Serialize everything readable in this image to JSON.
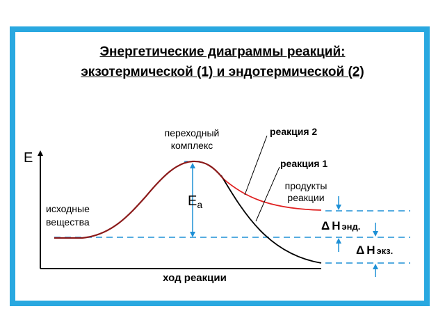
{
  "title": {
    "line1": "Энергетические диаграммы реакций:",
    "line2": "экзотермической (1) и эндотермической (2)"
  },
  "axes": {
    "y_label": "E",
    "x_label": "ход реакции"
  },
  "labels": {
    "transition_state_1": "переходный",
    "transition_state_2": "комплекс",
    "reaction2": "реакция 2",
    "reaction1": "реакция 1",
    "products_1": "продукты",
    "products_2": "реакции",
    "reactants_1": "исходные",
    "reactants_2": "вещества",
    "activation_main": "E",
    "activation_sub": "a",
    "dh_symbol": "Δ",
    "dh_endo_main": "H",
    "dh_endo_sub": "энд.",
    "dh_exo_main": "H",
    "dh_exo_sub": "экз."
  },
  "colors": {
    "frame": "#29a8e0",
    "dashed": "#1e90d6",
    "arrow": "#1e90d6",
    "curve_endo": "#e02020",
    "curve_exo": "#000000",
    "curve_common": "#8b1a1a"
  }
}
